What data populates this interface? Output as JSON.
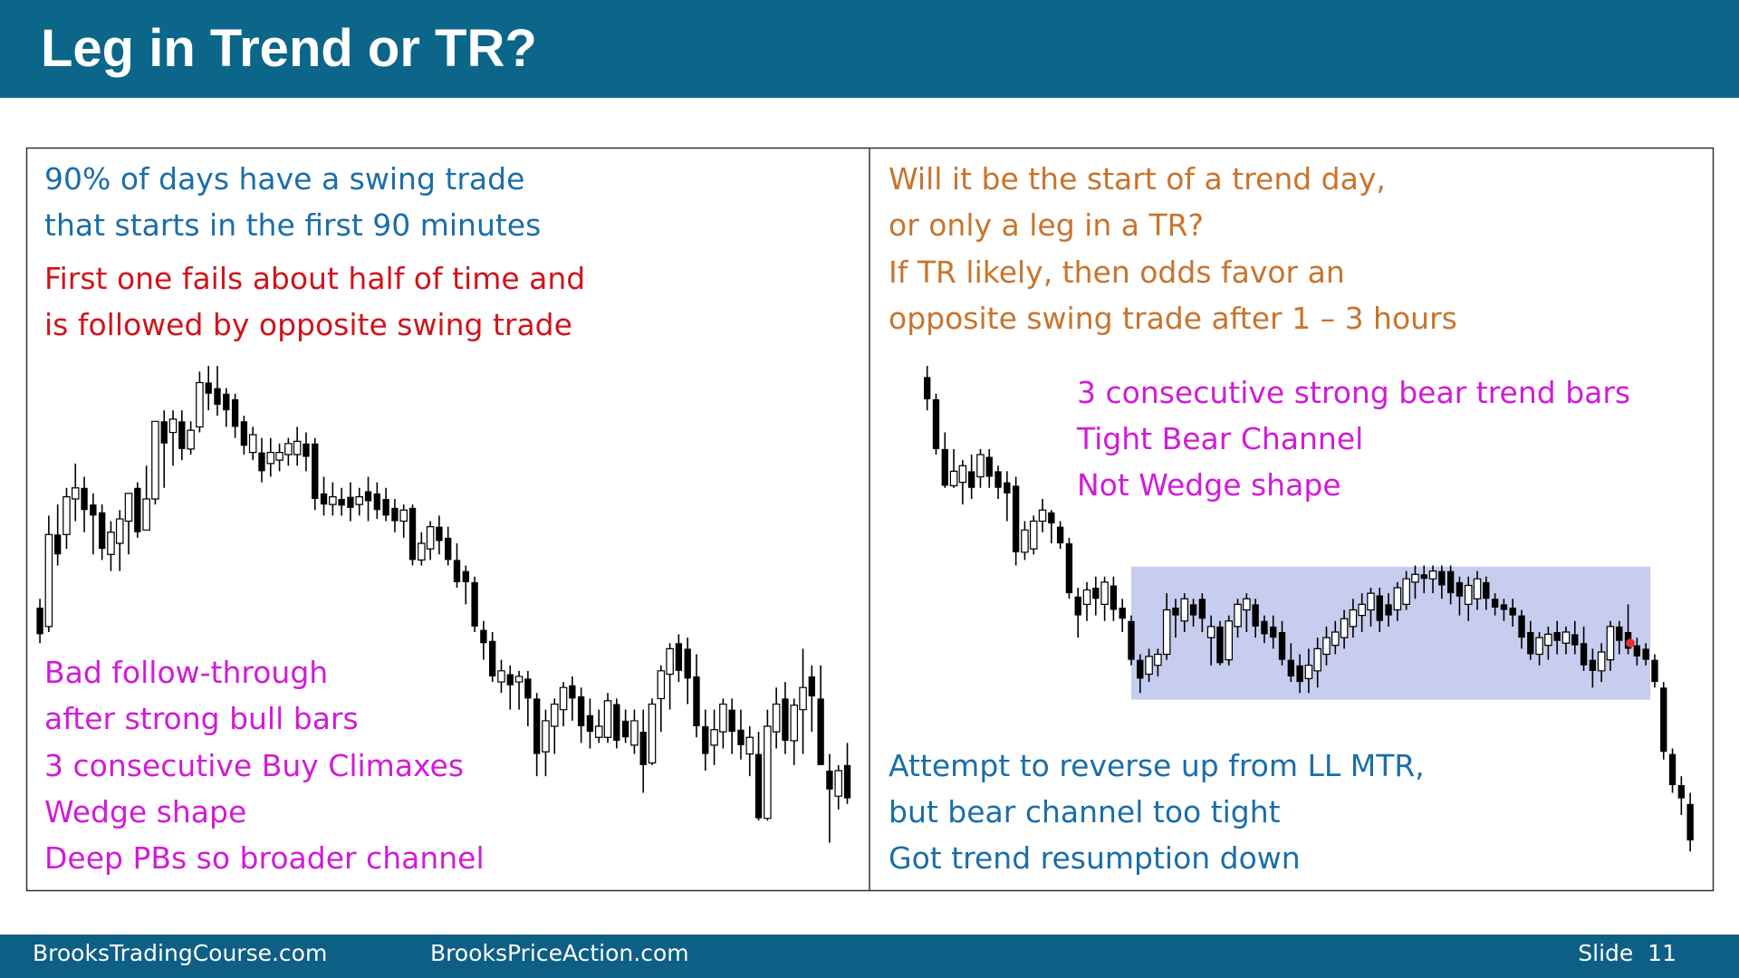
{
  "header": {
    "title": "Leg in Trend or TR?"
  },
  "left": {
    "blue_text": [
      "90% of days have a swing trade",
      "that starts in the first 90 minutes"
    ],
    "red_text": [
      "First one fails about half of time and",
      "is followed by opposite swing trade"
    ],
    "magenta_text": [
      "Bad follow-through",
      "after strong bull bars",
      "3 consecutive Buy Climaxes",
      "Wedge shape",
      "Deep PBs so broader channel"
    ]
  },
  "right": {
    "orange_text": [
      "Will it be the start of a trend day,",
      "or only a leg in a TR?",
      "If TR likely, then odds favor an",
      "opposite swing trade after 1 – 3 hours"
    ],
    "magenta_text": [
      "3 consecutive strong bear trend bars",
      "Tight Bear Channel",
      "Not Wedge shape"
    ],
    "blue_text": [
      "Attempt to reverse up from LL MTR,",
      "but bear channel too tight",
      "Got trend resumption down"
    ]
  },
  "footer": {
    "left": "BrooksTradingCourse.com",
    "center": "BrooksPriceAction.com",
    "slide": "Slide  11"
  }
}
